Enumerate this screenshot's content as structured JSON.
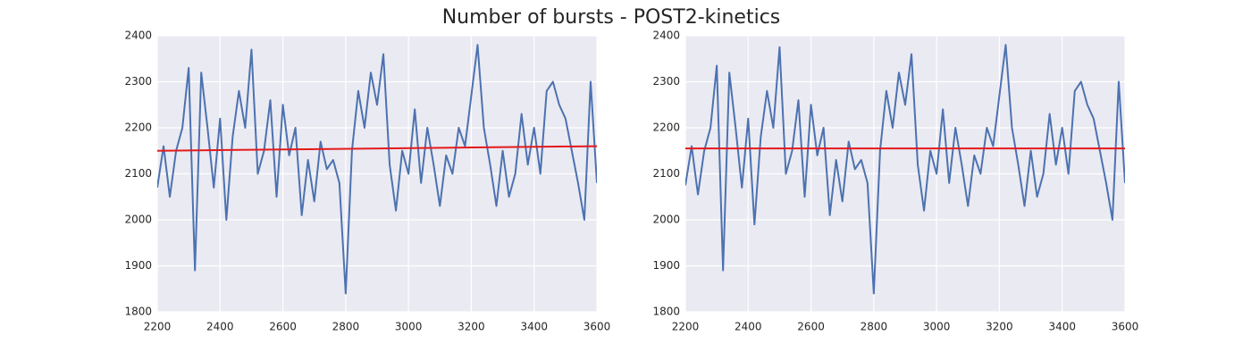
{
  "title": "Number of bursts - POST2-kinetics",
  "chart_data": [
    {
      "type": "line",
      "xlim": [
        2200,
        3600
      ],
      "xticks": [
        2200,
        2400,
        2600,
        2800,
        3000,
        3200,
        3400,
        3600
      ],
      "ylim": [
        1800,
        2400
      ],
      "yticks": [
        1800,
        1900,
        2000,
        2100,
        2200,
        2300,
        2400
      ],
      "grid": true,
      "series": [
        {
          "color": "#4c72b0",
          "x": [
            2200,
            2220,
            2240,
            2260,
            2280,
            2300,
            2320,
            2340,
            2360,
            2380,
            2400,
            2420,
            2440,
            2460,
            2480,
            2500,
            2520,
            2540,
            2560,
            2580,
            2600,
            2620,
            2640,
            2660,
            2680,
            2700,
            2720,
            2740,
            2760,
            2780,
            2800,
            2820,
            2840,
            2860,
            2880,
            2900,
            2920,
            2940,
            2960,
            2980,
            3000,
            3020,
            3040,
            3060,
            3080,
            3100,
            3120,
            3140,
            3160,
            3180,
            3200,
            3220,
            3240,
            3260,
            3280,
            3300,
            3320,
            3340,
            3360,
            3380,
            3400,
            3420,
            3440,
            3460,
            3480,
            3500,
            3520,
            3540,
            3560,
            3580,
            3600
          ],
          "values": [
            2070,
            2160,
            2050,
            2150,
            2200,
            2330,
            1890,
            2320,
            2200,
            2070,
            2220,
            2000,
            2180,
            2280,
            2200,
            2370,
            2100,
            2150,
            2260,
            2050,
            2250,
            2140,
            2200,
            2010,
            2130,
            2040,
            2170,
            2110,
            2130,
            2080,
            1840,
            2150,
            2280,
            2200,
            2320,
            2250,
            2360,
            2120,
            2020,
            2150,
            2100,
            2240,
            2080,
            2200,
            2120,
            2030,
            2140,
            2100,
            2200,
            2160,
            2270,
            2380,
            2200,
            2120,
            2030,
            2150,
            2050,
            2100,
            2230,
            2120,
            2200,
            2100,
            2280,
            2300,
            2250,
            2220,
            2150,
            2080,
            2000,
            2300,
            2080
          ]
        },
        {
          "color": "#e41a1c",
          "x": [
            2200,
            3600
          ],
          "values": [
            2150,
            2160
          ]
        }
      ]
    },
    {
      "type": "line",
      "xlim": [
        2200,
        3600
      ],
      "xticks": [
        2200,
        2400,
        2600,
        2800,
        3000,
        3200,
        3400,
        3600
      ],
      "ylim": [
        1800,
        2400
      ],
      "yticks": [
        1800,
        1900,
        2000,
        2100,
        2200,
        2300,
        2400
      ],
      "grid": true,
      "series": [
        {
          "color": "#4c72b0",
          "x": [
            2200,
            2220,
            2240,
            2260,
            2280,
            2300,
            2320,
            2340,
            2360,
            2380,
            2400,
            2420,
            2440,
            2460,
            2480,
            2500,
            2520,
            2540,
            2560,
            2580,
            2600,
            2620,
            2640,
            2660,
            2680,
            2700,
            2720,
            2740,
            2760,
            2780,
            2800,
            2820,
            2840,
            2860,
            2880,
            2900,
            2920,
            2940,
            2960,
            2980,
            3000,
            3020,
            3040,
            3060,
            3080,
            3100,
            3120,
            3140,
            3160,
            3180,
            3200,
            3220,
            3240,
            3260,
            3280,
            3300,
            3320,
            3340,
            3360,
            3380,
            3400,
            3420,
            3440,
            3460,
            3480,
            3500,
            3520,
            3540,
            3560,
            3580,
            3600
          ],
          "values": [
            2075,
            2160,
            2055,
            2150,
            2200,
            2335,
            1890,
            2320,
            2200,
            2070,
            2220,
            1990,
            2180,
            2280,
            2200,
            2375,
            2100,
            2150,
            2260,
            2050,
            2250,
            2140,
            2200,
            2010,
            2130,
            2040,
            2170,
            2110,
            2130,
            2080,
            1840,
            2150,
            2280,
            2200,
            2320,
            2250,
            2360,
            2120,
            2020,
            2150,
            2100,
            2240,
            2080,
            2200,
            2120,
            2030,
            2140,
            2100,
            2200,
            2160,
            2270,
            2380,
            2200,
            2120,
            2030,
            2150,
            2050,
            2100,
            2230,
            2120,
            2200,
            2100,
            2280,
            2300,
            2250,
            2220,
            2150,
            2080,
            2000,
            2300,
            2080
          ]
        },
        {
          "color": "#e41a1c",
          "x": [
            2200,
            3600
          ],
          "values": [
            2155,
            2155
          ]
        }
      ]
    }
  ]
}
